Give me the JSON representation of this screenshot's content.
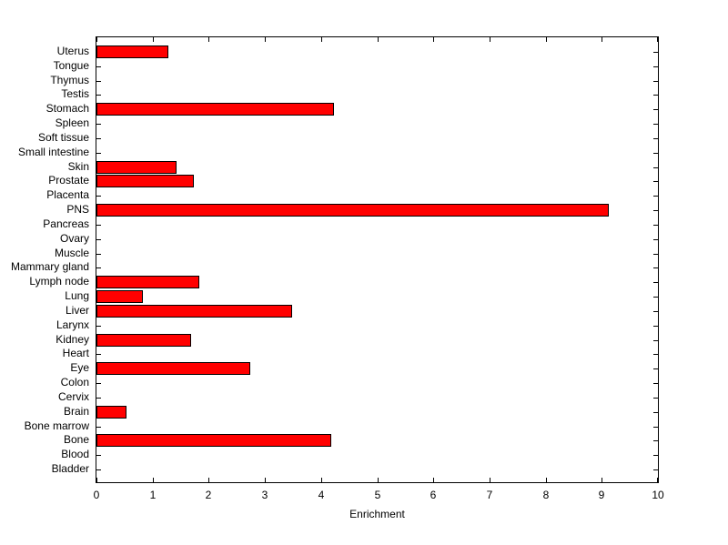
{
  "chart_data": {
    "type": "bar",
    "orientation": "horizontal",
    "title": "",
    "xlabel": "Enrichment",
    "ylabel": "",
    "xlim": [
      0,
      10
    ],
    "xticks": [
      0,
      1,
      2,
      3,
      4,
      5,
      6,
      7,
      8,
      9,
      10
    ],
    "grid": false,
    "legend": null,
    "bar_color": "#ff0000",
    "bar_edge_color": "#000000",
    "axis_color": "#000000",
    "background_color": "#ffffff",
    "categories_top_to_bottom": [
      "Uterus",
      "Tongue",
      "Thymus",
      "Testis",
      "Stomach",
      "Spleen",
      "Soft tissue",
      "Small intestine",
      "Skin",
      "Prostate",
      "Placenta",
      "PNS",
      "Pancreas",
      "Ovary",
      "Muscle",
      "Mammary gland",
      "Lymph node",
      "Lung",
      "Liver",
      "Larynx",
      "Kidney",
      "Heart",
      "Eye",
      "Colon",
      "Cervix",
      "Brain",
      "Bone marrow",
      "Bone",
      "Blood",
      "Bladder"
    ],
    "values": [
      1.25,
      0,
      0,
      0,
      4.2,
      0,
      0,
      0,
      1.4,
      1.7,
      0,
      9.1,
      0,
      0,
      0,
      0,
      1.8,
      0.8,
      3.45,
      0,
      1.65,
      0,
      2.7,
      0,
      0,
      0.5,
      0,
      4.15,
      0,
      0
    ]
  }
}
